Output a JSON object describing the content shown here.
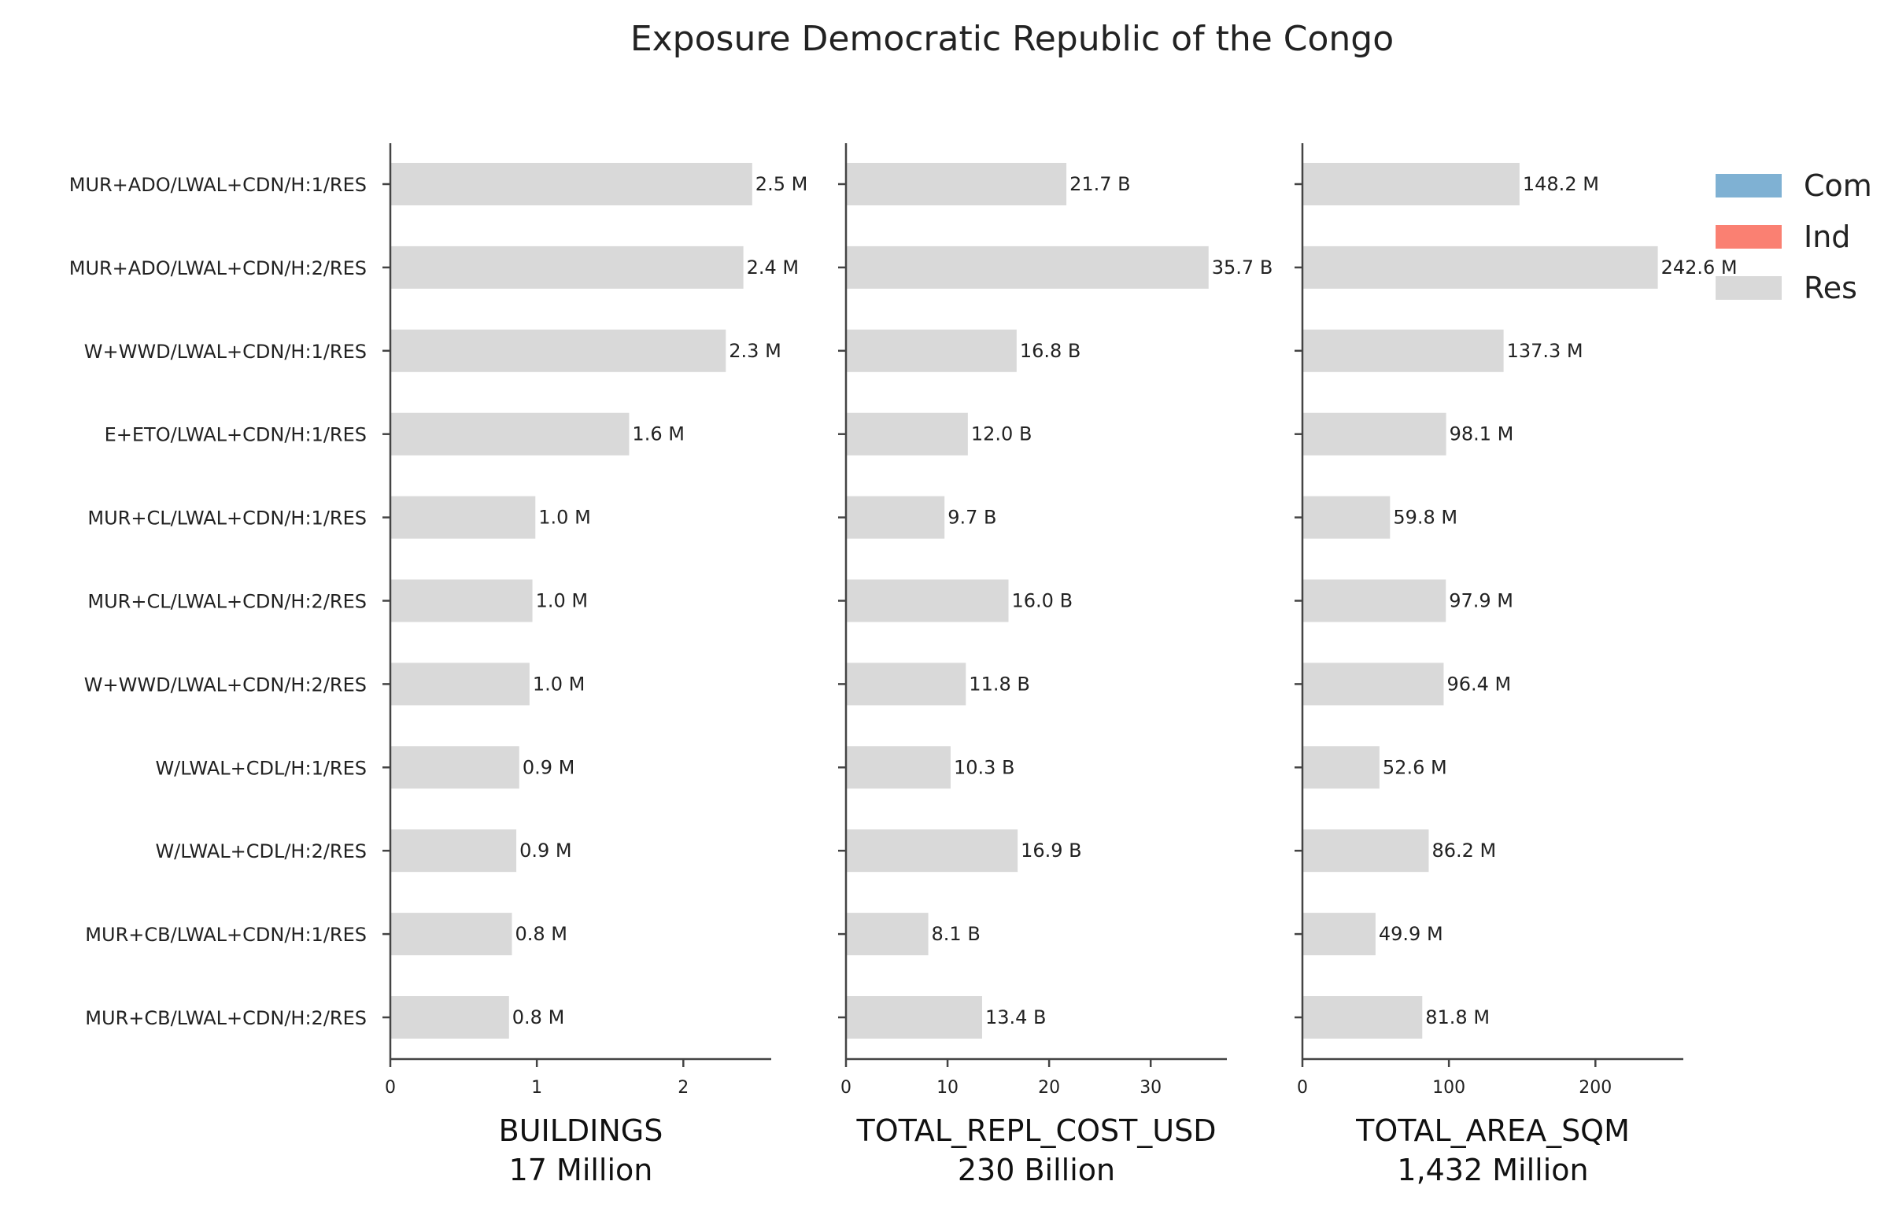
{
  "chart_data": {
    "title": "Exposure Democratic Republic of the Congo",
    "type": "bar",
    "orientation": "horizontal",
    "categories": [
      "MUR+ADO/LWAL+CDN/H:1/RES",
      "MUR+ADO/LWAL+CDN/H:2/RES",
      "W+WWD/LWAL+CDN/H:1/RES",
      "E+ETO/LWAL+CDN/H:1/RES",
      "MUR+CL/LWAL+CDN/H:1/RES",
      "MUR+CL/LWAL+CDN/H:2/RES",
      "W+WWD/LWAL+CDN/H:2/RES",
      "W/LWAL+CDL/H:1/RES",
      "W/LWAL+CDL/H:2/RES",
      "MUR+CB/LWAL+CDN/H:1/RES",
      "MUR+CB/LWAL+CDN/H:2/RES"
    ],
    "legend": {
      "placement": "top-right",
      "entries": [
        {
          "name": "Com",
          "color": "#7fb1d3"
        },
        {
          "name": "Ind",
          "color": "#fa8072"
        },
        {
          "name": "Res",
          "color": "#d9d9d9"
        }
      ]
    },
    "panels": [
      {
        "xlabel": "BUILDINGS",
        "total": "17 Million",
        "xlim": [
          0,
          2.6
        ],
        "ticks": [
          0,
          1,
          2
        ],
        "values": [
          2.47,
          2.41,
          2.29,
          1.63,
          0.99,
          0.97,
          0.95,
          0.88,
          0.86,
          0.83,
          0.81
        ],
        "labels": [
          "2.5 M",
          "2.4 M",
          "2.3 M",
          "1.6 M",
          "1.0 M",
          "1.0 M",
          "1.0 M",
          "0.9 M",
          "0.9 M",
          "0.8 M",
          "0.8 M"
        ]
      },
      {
        "xlabel": "TOTAL_REPL_COST_USD",
        "total": "230 Billion",
        "xlim": [
          0,
          37.5
        ],
        "ticks": [
          0,
          10,
          20,
          30
        ],
        "values": [
          21.7,
          35.7,
          16.8,
          12.0,
          9.7,
          16.0,
          11.8,
          10.3,
          16.9,
          8.1,
          13.4
        ],
        "labels": [
          "21.7 B",
          "35.7 B",
          "16.8 B",
          "12.0 B",
          "9.7 B",
          "16.0 B",
          "11.8 B",
          "10.3 B",
          "16.9 B",
          "8.1 B",
          "13.4 B"
        ]
      },
      {
        "xlabel": "TOTAL_AREA_SQM",
        "total": "1,432 Million",
        "xlim": [
          0,
          260
        ],
        "ticks": [
          0,
          100,
          200
        ],
        "values": [
          148.2,
          242.6,
          137.3,
          98.1,
          59.8,
          97.9,
          96.4,
          52.6,
          86.2,
          49.9,
          81.8
        ],
        "labels": [
          "148.2 M",
          "242.6 M",
          "137.3 M",
          "98.1 M",
          "59.8 M",
          "97.9 M",
          "96.4 M",
          "52.6 M",
          "86.2 M",
          "49.9 M",
          "81.8 M"
        ]
      }
    ],
    "grid": false
  }
}
